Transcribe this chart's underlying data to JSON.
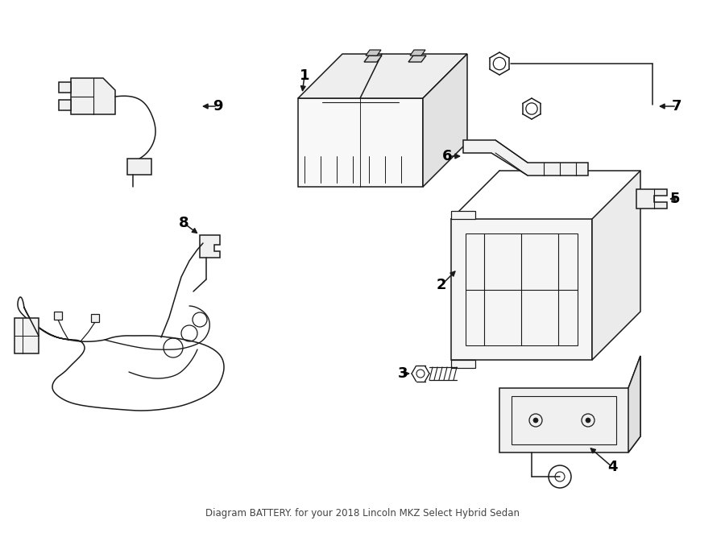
{
  "title": "BATTERY",
  "subtitle": "for your 2018 Lincoln MKZ Select Hybrid Sedan",
  "bg_color": "#ffffff",
  "line_color": "#1a1a1a",
  "label_color": "#000000",
  "figsize": [
    9.0,
    6.62
  ],
  "dpi": 100
}
